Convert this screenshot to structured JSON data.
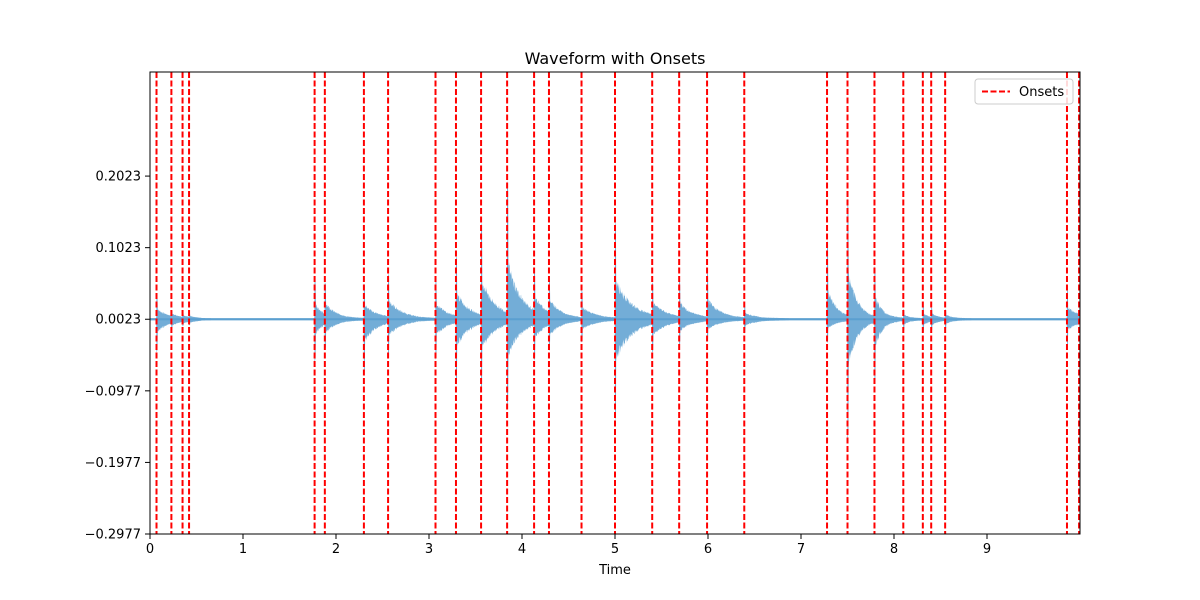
{
  "chart_data": {
    "type": "line",
    "title": "Waveform with Onsets",
    "xlabel": "Time",
    "ylabel": "",
    "xlim": [
      0,
      10.0
    ],
    "ylim": [
      -0.2977,
      0.3477
    ],
    "x_ticks": [
      0,
      1,
      2,
      3,
      4,
      5,
      6,
      7,
      8,
      9
    ],
    "y_ticks": [
      -0.2977,
      -0.1977,
      -0.0977,
      0.0023,
      0.1023,
      0.2023
    ],
    "y_tick_labels": [
      "−0.2977",
      "−0.1977",
      "−0.0977",
      "0.0023",
      "0.1023",
      "0.2023"
    ],
    "legend": {
      "position": "top-right",
      "entries": [
        "Onsets"
      ]
    },
    "colors": {
      "waveform": "#5b9fd0",
      "onsets": "#ff0000"
    },
    "series": [
      {
        "name": "Onsets",
        "style": "dashed-vertical",
        "x": [
          0.07,
          0.23,
          0.35,
          0.42,
          1.77,
          1.88,
          2.3,
          2.56,
          3.07,
          3.29,
          3.56,
          3.84,
          4.13,
          4.29,
          4.64,
          5.0,
          5.4,
          5.69,
          5.99,
          6.39,
          7.28,
          7.5,
          7.79,
          8.1,
          8.31,
          8.4,
          8.55,
          9.86,
          9.99
        ]
      }
    ],
    "waveform_bursts": [
      {
        "t": 0.07,
        "up": 0.035,
        "down": 0.045,
        "decay": 0.12
      },
      {
        "t": 0.23,
        "up": 0.008,
        "down": 0.008,
        "decay": 0.08
      },
      {
        "t": 0.35,
        "up": 0.006,
        "down": 0.006,
        "decay": 0.07
      },
      {
        "t": 0.42,
        "up": 0.005,
        "down": 0.005,
        "decay": 0.06
      },
      {
        "t": 1.77,
        "up": 0.06,
        "down": 0.06,
        "decay": 0.08
      },
      {
        "t": 1.88,
        "up": 0.045,
        "down": 0.035,
        "decay": 0.12
      },
      {
        "t": 2.3,
        "up": 0.048,
        "down": 0.075,
        "decay": 0.14
      },
      {
        "t": 2.56,
        "up": 0.06,
        "down": 0.045,
        "decay": 0.14
      },
      {
        "t": 3.07,
        "up": 0.055,
        "down": 0.055,
        "decay": 0.13
      },
      {
        "t": 3.29,
        "up": 0.085,
        "down": 0.087,
        "decay": 0.14
      },
      {
        "t": 3.56,
        "up": 0.13,
        "down": 0.093,
        "decay": 0.15
      },
      {
        "t": 3.84,
        "up": 0.185,
        "down": 0.115,
        "decay": 0.15
      },
      {
        "t": 4.13,
        "up": 0.056,
        "down": 0.05,
        "decay": 0.12
      },
      {
        "t": 4.29,
        "up": 0.045,
        "down": 0.036,
        "decay": 0.14
      },
      {
        "t": 4.64,
        "up": 0.038,
        "down": 0.03,
        "decay": 0.14
      },
      {
        "t": 5.0,
        "up": 0.135,
        "down": 0.14,
        "decay": 0.18
      },
      {
        "t": 5.4,
        "up": 0.045,
        "down": 0.04,
        "decay": 0.14
      },
      {
        "t": 5.69,
        "up": 0.05,
        "down": 0.032,
        "decay": 0.14
      },
      {
        "t": 5.99,
        "up": 0.063,
        "down": 0.028,
        "decay": 0.14
      },
      {
        "t": 6.39,
        "up": 0.016,
        "down": 0.018,
        "decay": 0.12
      },
      {
        "t": 7.28,
        "up": 0.11,
        "down": 0.032,
        "decay": 0.1
      },
      {
        "t": 7.5,
        "up": 0.165,
        "down": 0.17,
        "decay": 0.1
      },
      {
        "t": 7.79,
        "up": 0.07,
        "down": 0.086,
        "decay": 0.09
      },
      {
        "t": 8.1,
        "up": 0.012,
        "down": 0.014,
        "decay": 0.07
      },
      {
        "t": 8.31,
        "up": 0.018,
        "down": 0.018,
        "decay": 0.07
      },
      {
        "t": 8.4,
        "up": 0.014,
        "down": 0.014,
        "decay": 0.07
      },
      {
        "t": 8.55,
        "up": 0.012,
        "down": 0.012,
        "decay": 0.07
      },
      {
        "t": 9.86,
        "up": 0.04,
        "down": 0.035,
        "decay": 0.14
      }
    ]
  }
}
